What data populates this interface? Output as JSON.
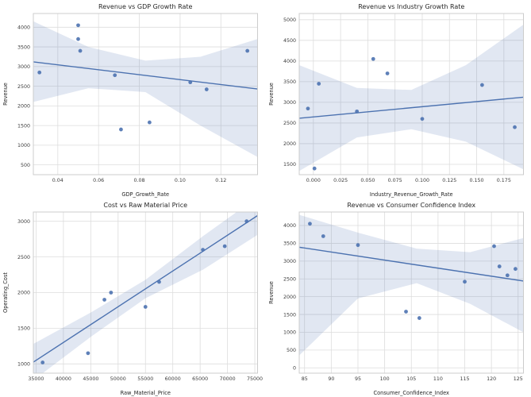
{
  "figure": {
    "background": "#ffffff",
    "accent": "#4c72b0",
    "band_opacity": 0.17,
    "point_opacity": 0.9,
    "grid_color": "#dddddd",
    "border_color": "#cccccc",
    "text_color": "#262626",
    "tick_color": "#3a3a3a"
  },
  "chart_data": [
    {
      "type": "scatter",
      "title": "Revenue vs GDP Growth Rate",
      "xlabel": "GDP_Growth_Rate",
      "ylabel": "Revenue",
      "xlim": [
        0.028,
        0.138
      ],
      "ylim": [
        250,
        4350
      ],
      "grid": true,
      "legend": null,
      "xticks": {
        "values": [
          0.04,
          0.06,
          0.08,
          0.1,
          0.12
        ],
        "labels": [
          "0.04",
          "0.06",
          "0.08",
          "0.10",
          "0.12"
        ]
      },
      "yticks": {
        "values": [
          500,
          1000,
          1500,
          2000,
          2500,
          3000,
          3500,
          4000
        ],
        "labels": [
          "500",
          "1000",
          "1500",
          "2000",
          "2500",
          "3000",
          "3500",
          "4000"
        ]
      },
      "points": [
        [
          0.031,
          2850
        ],
        [
          0.05,
          4050
        ],
        [
          0.05,
          3700
        ],
        [
          0.051,
          3400
        ],
        [
          0.068,
          2780
        ],
        [
          0.071,
          1400
        ],
        [
          0.085,
          1580
        ],
        [
          0.105,
          2600
        ],
        [
          0.113,
          2420
        ],
        [
          0.133,
          3400
        ]
      ],
      "regression_line": {
        "x": [
          0.028,
          0.138
        ],
        "y": [
          3120,
          2430
        ]
      },
      "confidence_band": {
        "x": [
          0.028,
          0.055,
          0.083,
          0.11,
          0.138
        ],
        "upper": [
          4150,
          3500,
          3150,
          3250,
          3700
        ],
        "lower": [
          2100,
          2450,
          2350,
          1500,
          700
        ]
      }
    },
    {
      "type": "scatter",
      "title": "Revenue vs Industry Growth Rate",
      "xlabel": "Industry_Revenue_Growth_Rate",
      "ylabel": "Revenue",
      "xlim": [
        -0.013,
        0.193
      ],
      "ylim": [
        1250,
        5150
      ],
      "grid": true,
      "legend": null,
      "xticks": {
        "values": [
          0.0,
          0.025,
          0.05,
          0.075,
          0.1,
          0.125,
          0.15,
          0.175
        ],
        "labels": [
          "0.000",
          "0.025",
          "0.050",
          "0.075",
          "0.100",
          "0.125",
          "0.150",
          "0.175"
        ]
      },
      "yticks": {
        "values": [
          1500,
          2000,
          2500,
          3000,
          3500,
          4000,
          4500,
          5000
        ],
        "labels": [
          "1500",
          "2000",
          "2500",
          "3000",
          "3500",
          "4000",
          "4500",
          "5000"
        ]
      },
      "points": [
        [
          -0.005,
          2850
        ],
        [
          0.001,
          1400
        ],
        [
          0.005,
          3450
        ],
        [
          0.04,
          2780
        ],
        [
          0.055,
          4050
        ],
        [
          0.068,
          3700
        ],
        [
          0.1,
          2600
        ],
        [
          0.155,
          3420
        ],
        [
          0.185,
          2400
        ]
      ],
      "regression_line": {
        "x": [
          -0.013,
          0.193
        ],
        "y": [
          2615,
          3125
        ]
      },
      "confidence_band": {
        "x": [
          -0.013,
          0.04,
          0.09,
          0.14,
          0.193
        ],
        "upper": [
          3900,
          3350,
          3300,
          3900,
          4880
        ],
        "lower": [
          1340,
          2150,
          2350,
          2050,
          1380
        ]
      }
    },
    {
      "type": "scatter",
      "title": "Cost vs Raw Material Price",
      "xlabel": "Raw_Material_Price",
      "ylabel": "Operating_Cost",
      "xlim": [
        34500,
        75500
      ],
      "ylim": [
        870,
        3130
      ],
      "grid": true,
      "legend": null,
      "xticks": {
        "values": [
          35000,
          40000,
          45000,
          50000,
          55000,
          60000,
          65000,
          70000,
          75000
        ],
        "labels": [
          "35000",
          "40000",
          "45000",
          "50000",
          "55000",
          "60000",
          "65000",
          "70000",
          "75000"
        ]
      },
      "yticks": {
        "values": [
          1000,
          1500,
          2000,
          2500,
          3000
        ],
        "labels": [
          "1000",
          "1500",
          "2000",
          "2500",
          "3000"
        ]
      },
      "points": [
        [
          36200,
          1020
        ],
        [
          44500,
          1150
        ],
        [
          47500,
          1900
        ],
        [
          48700,
          2000
        ],
        [
          55000,
          1800
        ],
        [
          57500,
          2150
        ],
        [
          65500,
          2600
        ],
        [
          69500,
          2650
        ],
        [
          73500,
          3000
        ]
      ],
      "regression_line": {
        "x": [
          34500,
          75500
        ],
        "y": [
          1025,
          3080
        ]
      },
      "confidence_band": {
        "x": [
          34500,
          45000,
          55000,
          65500,
          75500
        ],
        "upper": [
          1280,
          1720,
          2180,
          2790,
          3340
        ],
        "lower": [
          770,
          1380,
          1920,
          2320,
          2810
        ]
      }
    },
    {
      "type": "scatter",
      "title": "Revenue vs Consumer Confidence Index",
      "xlabel": "Consumer_Confidence_Index",
      "ylabel": "Revenue",
      "xlim": [
        84,
        126
      ],
      "ylim": [
        -150,
        4380
      ],
      "grid": true,
      "legend": null,
      "xticks": {
        "values": [
          85,
          90,
          95,
          100,
          105,
          110,
          115,
          120,
          125
        ],
        "labels": [
          "85",
          "90",
          "95",
          "100",
          "105",
          "110",
          "115",
          "120",
          "125"
        ]
      },
      "yticks": {
        "values": [
          0,
          500,
          1000,
          1500,
          2000,
          2500,
          3000,
          3500,
          4000
        ],
        "labels": [
          "0",
          "500",
          "1000",
          "1500",
          "2000",
          "2500",
          "3000",
          "3500",
          "4000"
        ]
      },
      "points": [
        [
          86,
          4050
        ],
        [
          88.5,
          3700
        ],
        [
          95,
          3450
        ],
        [
          104,
          1580
        ],
        [
          106.5,
          1400
        ],
        [
          115,
          2420
        ],
        [
          120.5,
          3420
        ],
        [
          121.5,
          2850
        ],
        [
          123,
          2600
        ],
        [
          124.5,
          2780
        ]
      ],
      "regression_line": {
        "x": [
          84,
          126
        ],
        "y": [
          3390,
          2440
        ]
      },
      "confidence_band": {
        "x": [
          84,
          95,
          106,
          116,
          126
        ],
        "upper": [
          4300,
          3800,
          3350,
          3250,
          3650
        ],
        "lower": [
          350,
          1950,
          2380,
          1800,
          1000
        ]
      }
    }
  ]
}
